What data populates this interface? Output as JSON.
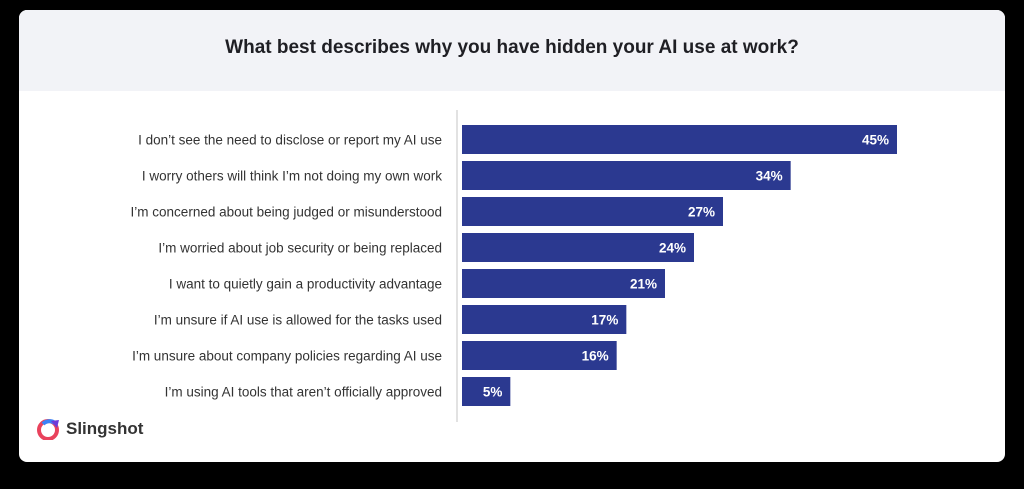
{
  "chart_data": {
    "type": "bar",
    "orientation": "horizontal",
    "title": "What best describes why you have hidden your AI use at work?",
    "categories": [
      "I don’t see the need to disclose or report my AI use",
      "I worry others will think I’m not doing my own work",
      "I’m concerned about being judged or misunderstood",
      "I’m worried about job security or being replaced",
      "I want to quietly gain a productivity advantage",
      "I’m unsure if AI use is allowed for the tasks used",
      "I’m unsure about company policies regarding AI use",
      "I’m using AI tools that aren’t officially approved"
    ],
    "values": [
      45,
      34,
      27,
      24,
      21,
      17,
      16,
      5
    ],
    "data_labels": [
      "45%",
      "34%",
      "27%",
      "24%",
      "21%",
      "17%",
      "16%",
      "5%"
    ],
    "unit": "%",
    "grid": false,
    "bar_color": "#2b3990"
  },
  "branding": {
    "logo_text": "Slingshot"
  }
}
